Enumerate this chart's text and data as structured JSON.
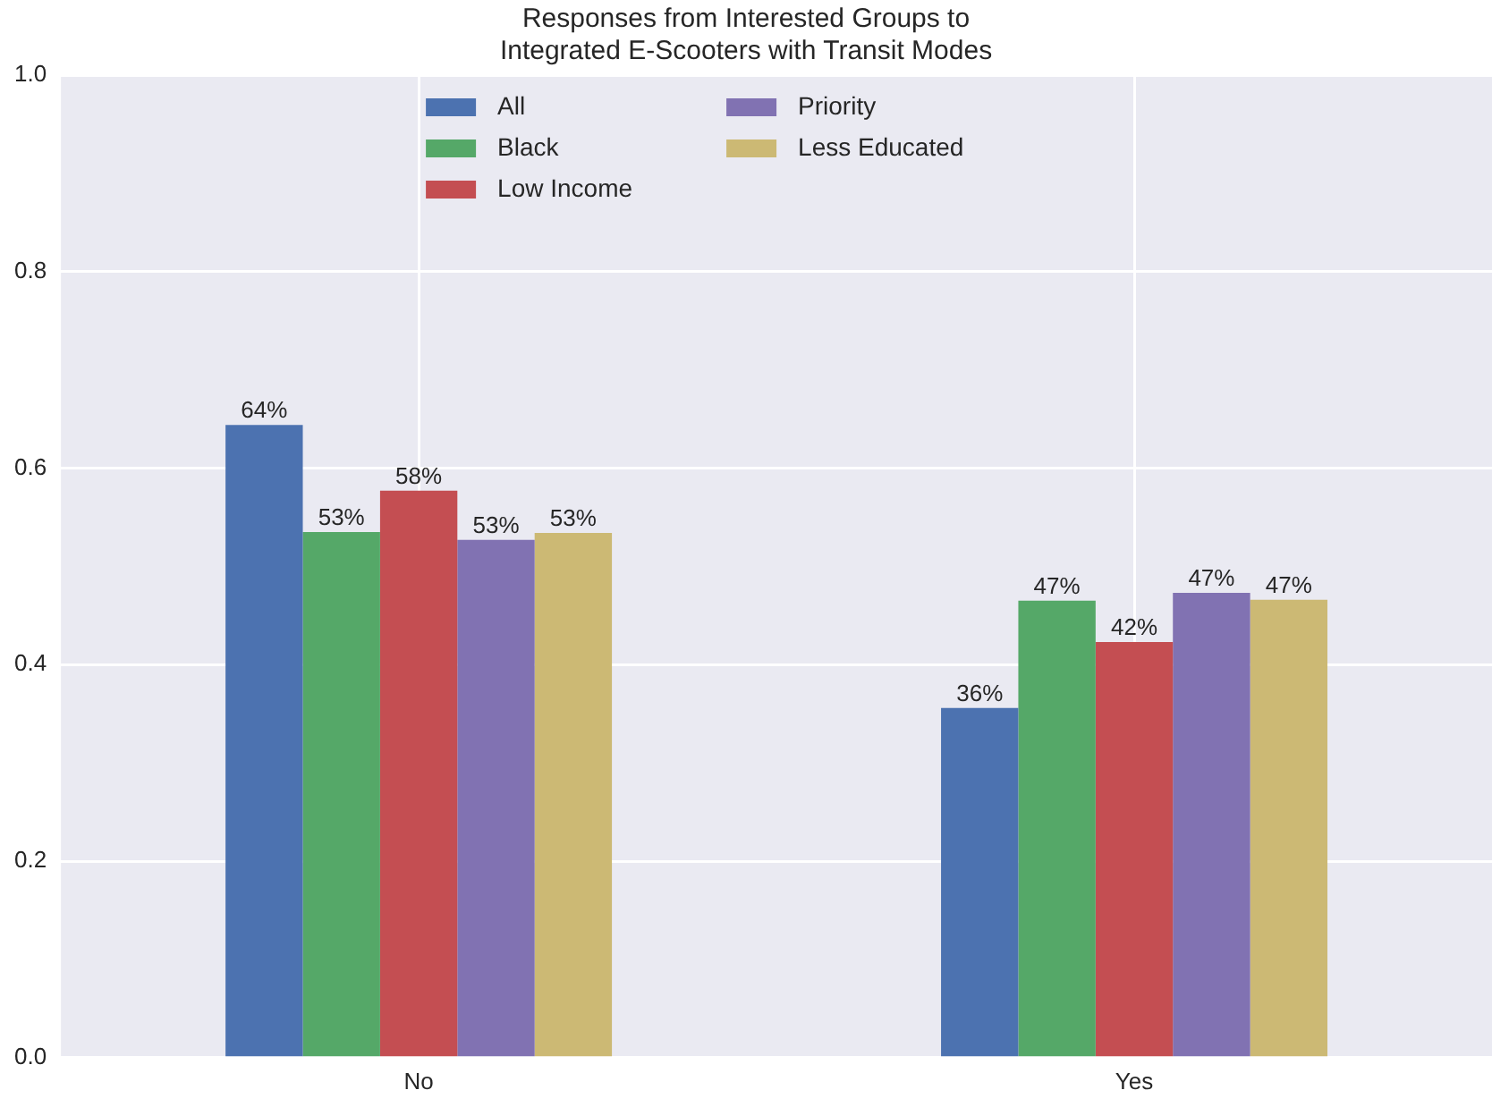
{
  "chart_data": {
    "type": "bar",
    "title": "Responses from Interested Groups to\nIntegrated E-Scooters with Transit Modes",
    "categories": [
      "No",
      "Yes"
    ],
    "series": [
      {
        "name": "All",
        "color": "#4c72b0",
        "values": [
          0.644,
          0.356
        ],
        "value_labels": [
          "64%",
          "36%"
        ]
      },
      {
        "name": "Black",
        "color": "#55a868",
        "values": [
          0.535,
          0.465
        ],
        "value_labels": [
          "53%",
          "47%"
        ]
      },
      {
        "name": "Low Income",
        "color": "#c44e52",
        "values": [
          0.577,
          0.423
        ],
        "value_labels": [
          "58%",
          "42%"
        ]
      },
      {
        "name": "Priority",
        "color": "#8172b2",
        "values": [
          0.527,
          0.473
        ],
        "value_labels": [
          "53%",
          "47%"
        ]
      },
      {
        "name": "Less Educated",
        "color": "#ccb974",
        "values": [
          0.534,
          0.466
        ],
        "value_labels": [
          "53%",
          "47%"
        ]
      }
    ],
    "ylim": [
      0,
      1
    ],
    "yticks": [
      {
        "value": 0,
        "label": "0.0"
      },
      {
        "value": 0.2,
        "label": "0.2"
      },
      {
        "value": 0.4,
        "label": "0.4"
      },
      {
        "value": 0.6,
        "label": "0.6"
      },
      {
        "value": 0.8,
        "label": "0.8"
      },
      {
        "value": 1,
        "label": "1.0"
      }
    ],
    "grid": true,
    "legend": "top"
  }
}
